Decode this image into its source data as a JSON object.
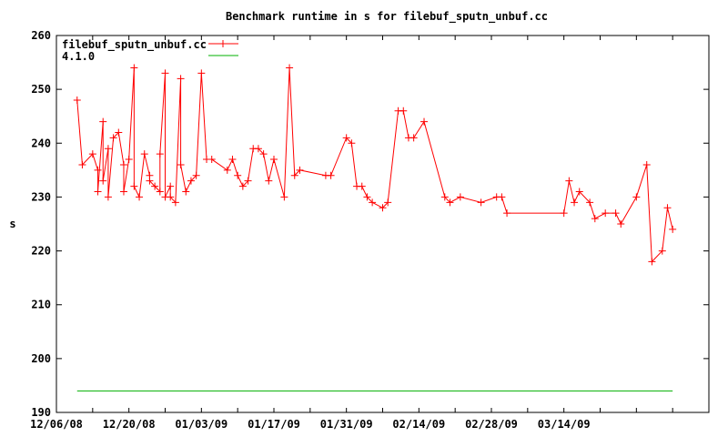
{
  "chart_data": {
    "type": "line",
    "title": "Benchmark runtime in s for filebuf_sputn_unbuf.cc",
    "xlabel": "",
    "ylabel": "s",
    "xlim": [
      "2008-12-06",
      "2009-04-11"
    ],
    "ylim": [
      190,
      260
    ],
    "y_ticks": [
      190,
      200,
      210,
      220,
      230,
      240,
      250,
      260
    ],
    "x_tick_labels": [
      "12/06/08",
      "12/20/08",
      "01/03/09",
      "01/17/09",
      "01/31/09",
      "02/14/09",
      "02/28/09",
      "03/14/09"
    ],
    "grid": false,
    "legend_position": "top-left",
    "series": [
      {
        "name": "filebuf_sputn_unbuf.cc",
        "color": "#ff0000",
        "marker": "plus",
        "points": [
          [
            "2008-12-10",
            248
          ],
          [
            "2008-12-11",
            236
          ],
          [
            "2008-12-13",
            238
          ],
          [
            "2008-12-14",
            235
          ],
          [
            "2008-12-14",
            231
          ],
          [
            "2008-12-15",
            244
          ],
          [
            "2008-12-15",
            233
          ],
          [
            "2008-12-16",
            239
          ],
          [
            "2008-12-16",
            230
          ],
          [
            "2008-12-17",
            241
          ],
          [
            "2008-12-18",
            242
          ],
          [
            "2008-12-19",
            236
          ],
          [
            "2008-12-19",
            231
          ],
          [
            "2008-12-20",
            237
          ],
          [
            "2008-12-21",
            254
          ],
          [
            "2008-12-21",
            232
          ],
          [
            "2008-12-22",
            230
          ],
          [
            "2008-12-23",
            238
          ],
          [
            "2008-12-24",
            234
          ],
          [
            "2008-12-24",
            233
          ],
          [
            "2008-12-25",
            232
          ],
          [
            "2008-12-26",
            231
          ],
          [
            "2008-12-26",
            238
          ],
          [
            "2008-12-27",
            253
          ],
          [
            "2008-12-27",
            230
          ],
          [
            "2008-12-28",
            232
          ],
          [
            "2008-12-28",
            230
          ],
          [
            "2008-12-29",
            229
          ],
          [
            "2008-12-30",
            252
          ],
          [
            "2008-12-30",
            236
          ],
          [
            "2008-12-31",
            231
          ],
          [
            "2009-01-01",
            233
          ],
          [
            "2009-01-02",
            234
          ],
          [
            "2009-01-03",
            253
          ],
          [
            "2009-01-04",
            237
          ],
          [
            "2009-01-05",
            237
          ],
          [
            "2009-01-08",
            235
          ],
          [
            "2009-01-09",
            237
          ],
          [
            "2009-01-10",
            234
          ],
          [
            "2009-01-11",
            232
          ],
          [
            "2009-01-12",
            233
          ],
          [
            "2009-01-13",
            239
          ],
          [
            "2009-01-14",
            239
          ],
          [
            "2009-01-15",
            238
          ],
          [
            "2009-01-16",
            233
          ],
          [
            "2009-01-17",
            237
          ],
          [
            "2009-01-19",
            230
          ],
          [
            "2009-01-20",
            254
          ],
          [
            "2009-01-21",
            234
          ],
          [
            "2009-01-22",
            235
          ],
          [
            "2009-01-27",
            234
          ],
          [
            "2009-01-28",
            234
          ],
          [
            "2009-01-31",
            241
          ],
          [
            "2009-02-01",
            240
          ],
          [
            "2009-02-02",
            232
          ],
          [
            "2009-02-03",
            232
          ],
          [
            "2009-02-04",
            230
          ],
          [
            "2009-02-05",
            229
          ],
          [
            "2009-02-07",
            228
          ],
          [
            "2009-02-08",
            229
          ],
          [
            "2009-02-10",
            246
          ],
          [
            "2009-02-11",
            246
          ],
          [
            "2009-02-12",
            241
          ],
          [
            "2009-02-13",
            241
          ],
          [
            "2009-02-15",
            244
          ],
          [
            "2009-02-19",
            230
          ],
          [
            "2009-02-20",
            229
          ],
          [
            "2009-02-22",
            230
          ],
          [
            "2009-02-26",
            229
          ],
          [
            "2009-03-01",
            230
          ],
          [
            "2009-03-02",
            230
          ],
          [
            "2009-03-03",
            227
          ],
          [
            "2009-03-14",
            227
          ],
          [
            "2009-03-15",
            233
          ],
          [
            "2009-03-16",
            229
          ],
          [
            "2009-03-17",
            231
          ],
          [
            "2009-03-19",
            229
          ],
          [
            "2009-03-20",
            226
          ],
          [
            "2009-03-22",
            227
          ],
          [
            "2009-03-24",
            227
          ],
          [
            "2009-03-25",
            225
          ],
          [
            "2009-03-28",
            230
          ],
          [
            "2009-03-30",
            236
          ],
          [
            "2009-03-31",
            218
          ],
          [
            "2009-04-02",
            220
          ],
          [
            "2009-04-03",
            228
          ],
          [
            "2009-04-04",
            224
          ]
        ]
      },
      {
        "name": "4.1.0",
        "color": "#00b000",
        "marker": "none",
        "points": [
          [
            "2008-12-10",
            194
          ],
          [
            "2009-04-04",
            194
          ]
        ]
      }
    ]
  }
}
